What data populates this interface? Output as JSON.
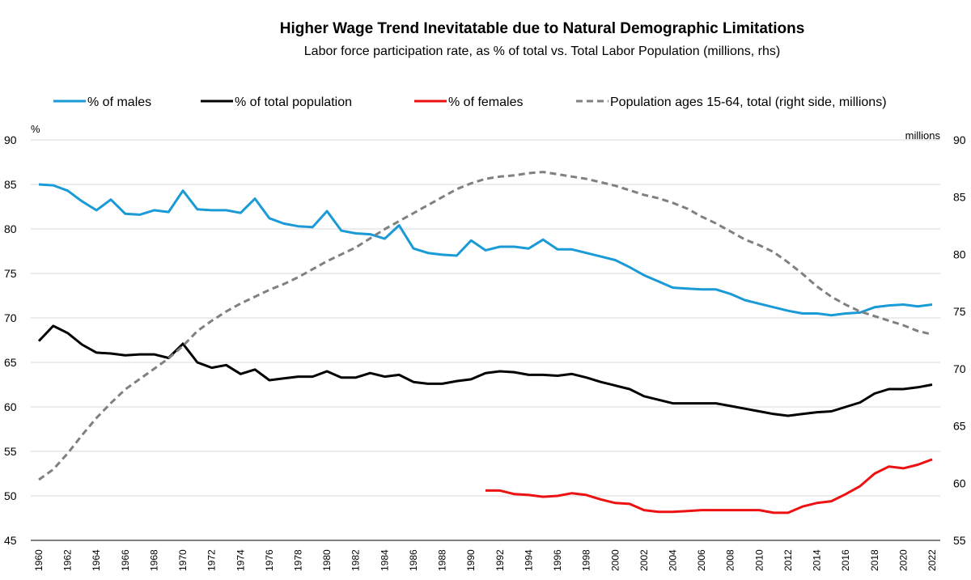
{
  "chart_data": {
    "type": "line",
    "title": "Higher Wage Trend Inevitatable due to Natural Demographic Limitations",
    "subtitle": "Labor force participation rate, as % of total vs. Total Labor Population (millions, rhs)",
    "y_left_unit": "%",
    "y_right_unit": "millions",
    "ylim_left": [
      45,
      90
    ],
    "ylim_right": [
      55,
      90
    ],
    "y_left_ticks": [
      45,
      50,
      55,
      60,
      65,
      70,
      75,
      80,
      85,
      90
    ],
    "y_right_ticks": [
      55,
      60,
      65,
      70,
      75,
      80,
      85,
      90
    ],
    "x_ticks": [
      "1960",
      "1962",
      "1964",
      "1966",
      "1968",
      "1970",
      "1972",
      "1974",
      "1976",
      "1978",
      "1980",
      "1982",
      "1984",
      "1986",
      "1988",
      "1990",
      "1992",
      "1994",
      "1996",
      "1998",
      "2000",
      "2002",
      "2004",
      "2006",
      "2008",
      "2010",
      "2012",
      "2014",
      "2016",
      "2018",
      "2020",
      "2022"
    ],
    "x": [
      1960,
      1961,
      1962,
      1963,
      1964,
      1965,
      1966,
      1967,
      1968,
      1969,
      1970,
      1971,
      1972,
      1973,
      1974,
      1975,
      1976,
      1977,
      1978,
      1979,
      1980,
      1981,
      1982,
      1983,
      1984,
      1985,
      1986,
      1987,
      1988,
      1989,
      1990,
      1991,
      1992,
      1993,
      1994,
      1995,
      1996,
      1997,
      1998,
      1999,
      2000,
      2001,
      2002,
      2003,
      2004,
      2005,
      2006,
      2007,
      2008,
      2009,
      2010,
      2011,
      2012,
      2013,
      2014,
      2015,
      2016,
      2017,
      2018,
      2019,
      2020,
      2021,
      2022
    ],
    "series": [
      {
        "name": "% of males",
        "color": "#1a9ad6",
        "axis": "left",
        "dash": false,
        "values": [
          85.0,
          84.9,
          84.3,
          83.1,
          82.1,
          83.3,
          81.7,
          81.6,
          82.1,
          81.9,
          84.3,
          82.2,
          82.1,
          82.1,
          81.8,
          83.4,
          81.2,
          80.6,
          80.3,
          80.2,
          82.0,
          79.8,
          79.5,
          79.4,
          78.9,
          80.4,
          77.8,
          77.3,
          77.1,
          77.0,
          78.7,
          77.6,
          78.0,
          78.0,
          77.8,
          78.8,
          77.7,
          77.7,
          77.3,
          76.9,
          76.5,
          75.7,
          74.8,
          74.1,
          73.4,
          73.3,
          73.2,
          73.2,
          72.7,
          72.0,
          71.6,
          71.2,
          70.8,
          70.5,
          70.5,
          70.3,
          70.5,
          70.6,
          71.2,
          71.4,
          71.5,
          71.3,
          71.5
        ]
      },
      {
        "name": "% of total population",
        "color": "#000000",
        "axis": "left",
        "dash": false,
        "values": [
          67.4,
          69.1,
          68.3,
          67.0,
          66.1,
          66.0,
          65.8,
          65.9,
          65.9,
          65.5,
          67.1,
          65.0,
          64.4,
          64.7,
          63.7,
          64.2,
          63.0,
          63.2,
          63.4,
          63.4,
          64.0,
          63.3,
          63.3,
          63.8,
          63.4,
          63.6,
          62.8,
          62.6,
          62.6,
          62.9,
          63.1,
          63.8,
          64.0,
          63.9,
          63.6,
          63.6,
          63.5,
          63.7,
          63.3,
          62.8,
          62.4,
          62.0,
          61.2,
          60.8,
          60.4,
          60.4,
          60.4,
          60.4,
          60.1,
          59.8,
          59.5,
          59.2,
          59.0,
          59.2,
          59.4,
          59.5,
          60.0,
          60.5,
          61.5,
          62.0,
          62.0,
          62.2,
          62.5
        ]
      },
      {
        "name": "% of females",
        "color": "#ee1111",
        "axis": "left",
        "dash": false,
        "values": [
          null,
          null,
          null,
          null,
          null,
          null,
          null,
          null,
          null,
          null,
          null,
          null,
          null,
          null,
          null,
          null,
          null,
          null,
          null,
          null,
          null,
          null,
          null,
          null,
          null,
          null,
          null,
          null,
          null,
          null,
          null,
          50.6,
          50.6,
          50.2,
          50.1,
          49.9,
          50.0,
          50.3,
          50.1,
          49.6,
          49.2,
          49.1,
          48.4,
          48.2,
          48.2,
          48.3,
          48.4,
          48.4,
          48.4,
          48.4,
          48.4,
          48.1,
          48.1,
          48.8,
          49.2,
          49.4,
          50.2,
          51.1,
          52.5,
          53.3,
          53.1,
          53.5,
          54.1
        ]
      },
      {
        "name": "Population ages 15-64, total (right side, millions)",
        "color": "#808080",
        "axis": "right",
        "dash": true,
        "values": [
          60.3,
          61.2,
          62.6,
          64.2,
          65.7,
          67.0,
          68.2,
          69.1,
          70.0,
          70.9,
          72.0,
          73.3,
          74.2,
          75.0,
          75.7,
          76.3,
          76.9,
          77.4,
          78.0,
          78.7,
          79.4,
          80.0,
          80.6,
          81.4,
          82.2,
          82.9,
          83.6,
          84.3,
          85.0,
          85.7,
          86.2,
          86.6,
          86.8,
          86.9,
          87.1,
          87.2,
          87.0,
          86.8,
          86.6,
          86.3,
          86.0,
          85.6,
          85.2,
          84.9,
          84.5,
          84.0,
          83.3,
          82.7,
          82.0,
          81.3,
          80.8,
          80.2,
          79.3,
          78.3,
          77.2,
          76.3,
          75.6,
          75.0,
          74.6,
          74.2,
          73.8,
          73.3,
          73.0
        ]
      }
    ]
  }
}
